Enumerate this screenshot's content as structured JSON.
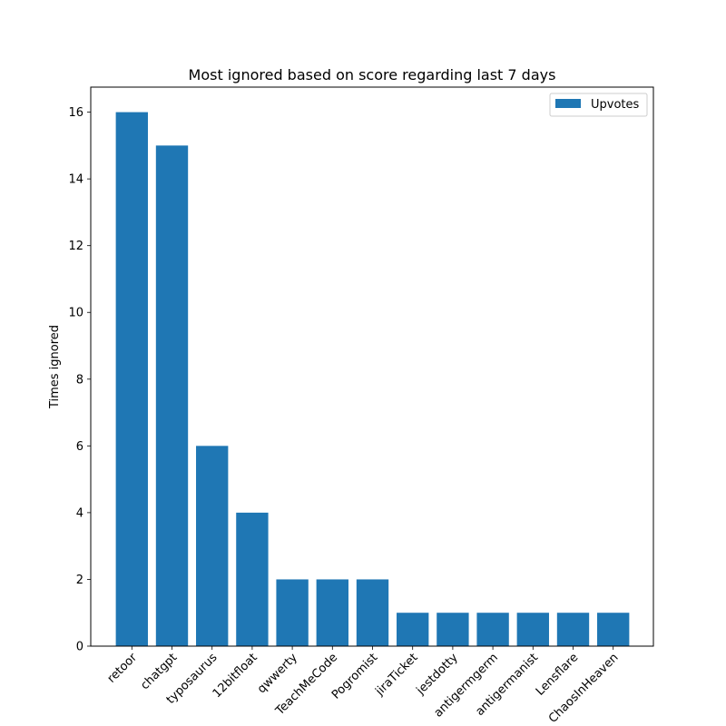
{
  "chart_data": {
    "type": "bar",
    "title": "Most ignored based on score regarding last 7 days",
    "xlabel": "",
    "ylabel": "Times ignored",
    "categories": [
      "retoor",
      "chatgpt",
      "typosaurus",
      "12bitfloat",
      "qwwerty",
      "TeachMeCode",
      "Pogromist",
      "jiraTicket",
      "jestdotty",
      "antigermgerm",
      "antigermanist",
      "Lensflare",
      "ChaosInHeaven"
    ],
    "series": [
      {
        "name": "Upvotes",
        "values": [
          16,
          15,
          6,
          4,
          2,
          2,
          2,
          1,
          1,
          1,
          1,
          1,
          1
        ],
        "color": "#1f77b4"
      }
    ],
    "ylim": [
      0,
      16.75
    ],
    "yticks": [
      0,
      2,
      4,
      6,
      8,
      10,
      12,
      14,
      16
    ],
    "grid": false,
    "legend_position": "top-right"
  }
}
